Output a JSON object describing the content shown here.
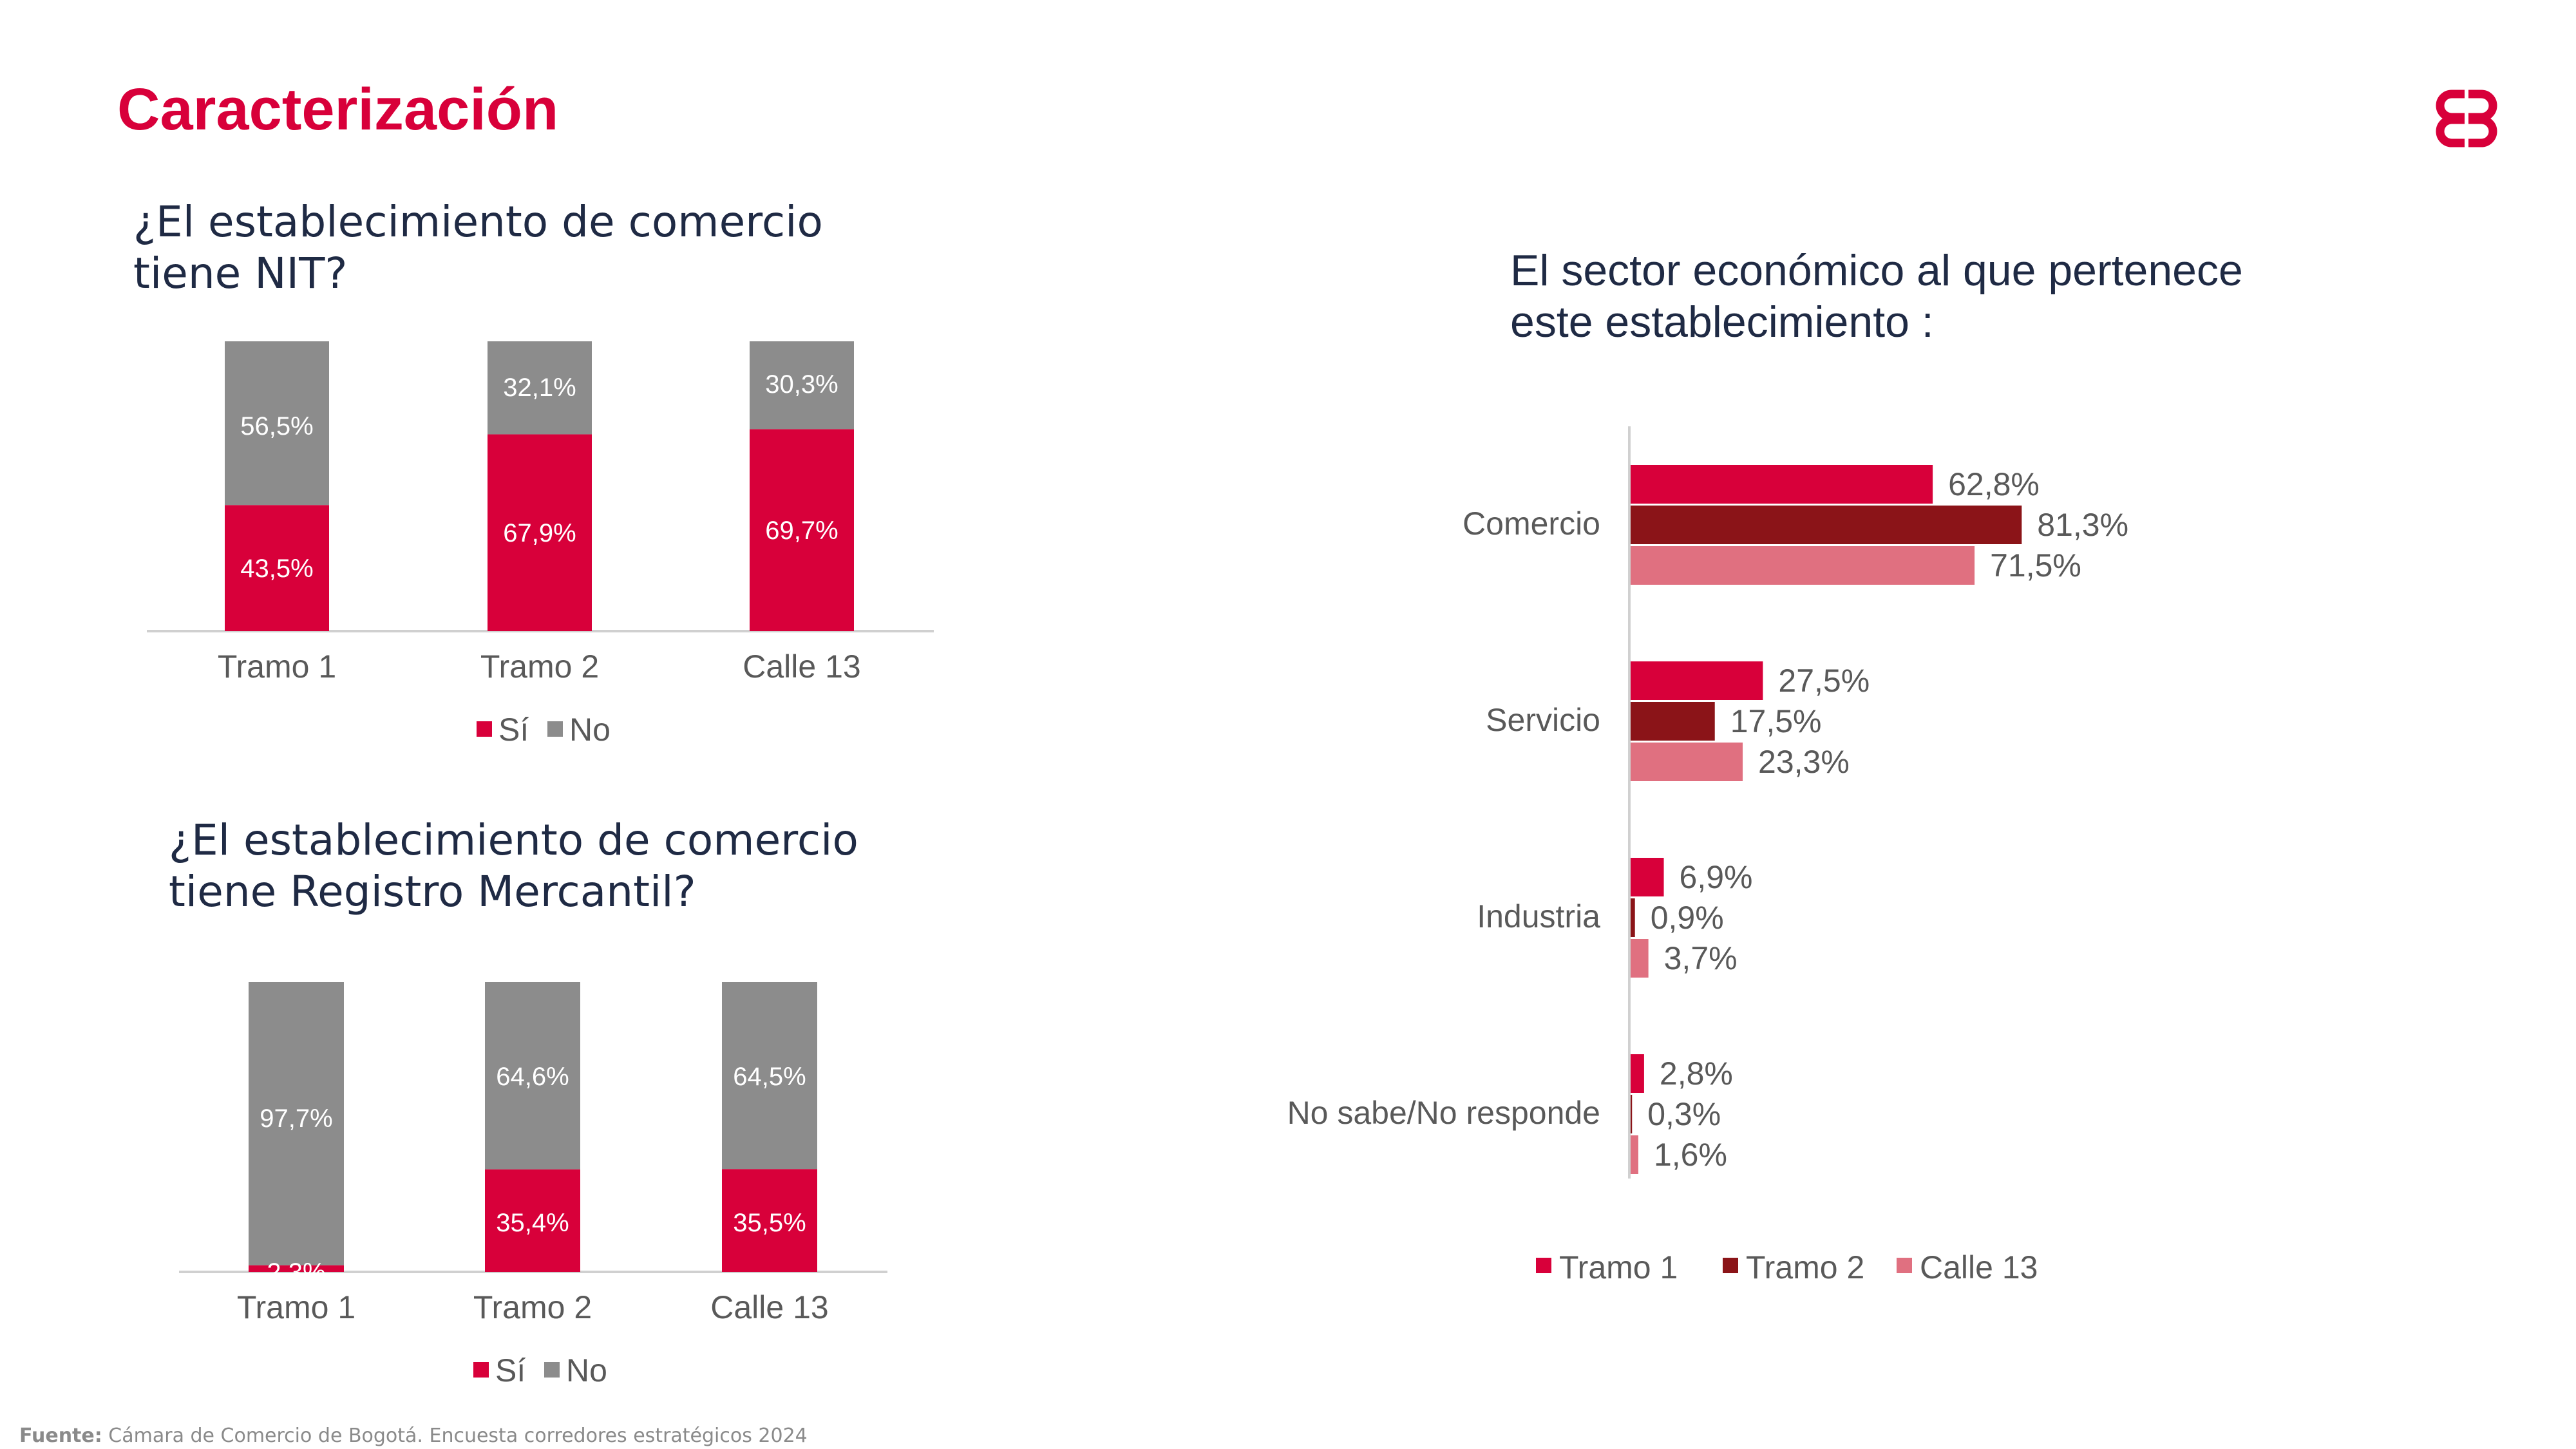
{
  "page": {
    "title": "Caracterización",
    "source_label": "Fuente:",
    "source_text": "Cámara de Comercio de Bogotá. Encuesta corredores estratégicos  2024"
  },
  "colors": {
    "si": "#d8003a",
    "no": "#8c8c8c",
    "tramo1": "#d8003a",
    "tramo2": "#8b1418",
    "calle13": "#e07080"
  },
  "chart_data": [
    {
      "type": "bar",
      "stacked": true,
      "title": "¿El establecimiento de comercio tiene NIT?",
      "categories": [
        "Tramo 1",
        "Tramo 2",
        "Calle 13"
      ],
      "series": [
        {
          "name": "Sí",
          "values": [
            43.5,
            67.9,
            69.7
          ],
          "labels": [
            "43,5%",
            "67,9%",
            "69,7%"
          ]
        },
        {
          "name": "No",
          "values": [
            56.5,
            32.1,
            30.3
          ],
          "labels": [
            "56,5%",
            "32,1%",
            "30,3%"
          ]
        }
      ],
      "ylim": [
        0,
        100
      ],
      "legend": "bottom"
    },
    {
      "type": "bar",
      "stacked": true,
      "title": "¿El establecimiento de comercio tiene Registro Mercantil?",
      "categories": [
        "Tramo 1",
        "Tramo 2",
        "Calle 13"
      ],
      "series": [
        {
          "name": "Sí",
          "values": [
            2.3,
            35.4,
            35.5
          ],
          "labels": [
            "2,3%",
            "35,4%",
            "35,5%"
          ]
        },
        {
          "name": "No",
          "values": [
            97.7,
            64.6,
            64.5
          ],
          "labels": [
            "97,7%",
            "64,6%",
            "64,5%"
          ]
        }
      ],
      "ylim": [
        0,
        100
      ],
      "legend": "bottom"
    },
    {
      "type": "bar",
      "orientation": "horizontal",
      "title": "El sector económico al que pertenece este establecimiento :",
      "categories": [
        "Comercio",
        "Servicio",
        "Industria",
        "No sabe/No responde"
      ],
      "series": [
        {
          "name": "Tramo 1",
          "values": [
            62.8,
            27.5,
            6.9,
            2.8
          ],
          "labels": [
            "62,8%",
            "27,5%",
            "6,9%",
            "2,8%"
          ]
        },
        {
          "name": "Tramo 2",
          "values": [
            81.3,
            17.5,
            0.9,
            0.3
          ],
          "labels": [
            "81,3%",
            "17,5%",
            "0,9%",
            "0,3%"
          ]
        },
        {
          "name": "Calle 13",
          "values": [
            71.5,
            23.3,
            3.7,
            1.6
          ],
          "labels": [
            "71,5%",
            "23,3%",
            "3,7%",
            "1,6%"
          ]
        }
      ],
      "legend": "bottom"
    }
  ]
}
